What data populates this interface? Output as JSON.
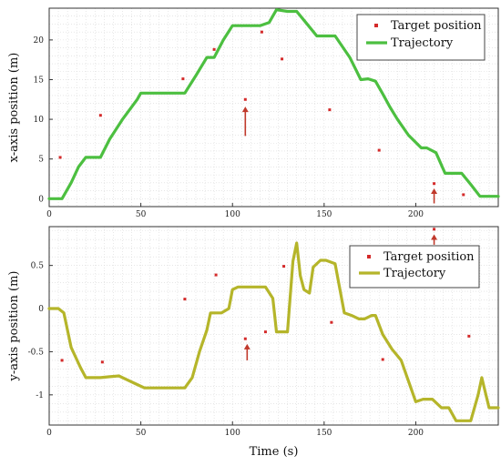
{
  "chart_data": [
    {
      "type": "line",
      "xlabel": "",
      "ylabel": "x-axis position (m)",
      "xlim": [
        0,
        245
      ],
      "ylim": [
        -1,
        24
      ],
      "xticks": [
        0,
        50,
        100,
        150,
        200
      ],
      "yticks": [
        0,
        5,
        10,
        15,
        20
      ],
      "grid": true,
      "legend_position": "top-right",
      "colors": {
        "target": "#d42a2a",
        "trajectory": "#4cbf40",
        "arrow": "#c0392b"
      },
      "series": [
        {
          "name": "Target position",
          "type": "scatter",
          "x": [
            6,
            28,
            73,
            90,
            107,
            116,
            127,
            153,
            180,
            210,
            226
          ],
          "y": [
            5.2,
            10.5,
            15.1,
            18.8,
            12.5,
            21.0,
            17.6,
            11.2,
            6.1,
            1.9,
            0.5
          ]
        },
        {
          "name": "Trajectory",
          "type": "line",
          "x": [
            0,
            7,
            12,
            16,
            20,
            28,
            33,
            40,
            48,
            50,
            58,
            70,
            74,
            80,
            86,
            90,
            95,
            100,
            104,
            115,
            120,
            124,
            130,
            135,
            140,
            146,
            152,
            156,
            164,
            170,
            174,
            178,
            182,
            186,
            190,
            196,
            203,
            206,
            211,
            216,
            220,
            225,
            230,
            235,
            245
          ],
          "y": [
            0,
            0,
            2.0,
            4.0,
            5.2,
            5.2,
            7.5,
            10.0,
            12.5,
            13.3,
            13.3,
            13.3,
            13.3,
            15.5,
            17.8,
            17.8,
            20.0,
            21.8,
            21.8,
            21.8,
            22.2,
            23.8,
            23.6,
            23.6,
            22.2,
            20.5,
            20.5,
            20.5,
            17.8,
            15.0,
            15.1,
            14.8,
            13.2,
            11.5,
            10.0,
            8.0,
            6.4,
            6.4,
            5.8,
            3.2,
            3.2,
            3.2,
            1.8,
            0.3,
            0.3
          ]
        }
      ],
      "annotations": [
        {
          "type": "arrow",
          "x": 107,
          "y_from": 7.9,
          "y_to": 11.6
        },
        {
          "type": "arrow",
          "x": 210,
          "y_from": -0.6,
          "y_to": 1.3
        }
      ]
    },
    {
      "type": "line",
      "xlabel": "Time (s)",
      "ylabel": "y-axis position (m)",
      "xlim": [
        0,
        245
      ],
      "ylim": [
        -1.35,
        0.95
      ],
      "xticks": [
        0,
        50,
        100,
        150,
        200
      ],
      "yticks": [
        -1,
        -0.5,
        0,
        0.5
      ],
      "grid": true,
      "legend_position": "top-right",
      "colors": {
        "target": "#d42a2a",
        "trajectory": "#b5b52a",
        "arrow": "#c0392b"
      },
      "series": [
        {
          "name": "Target position",
          "type": "scatter",
          "x": [
            7,
            29,
            74,
            91,
            107,
            118,
            128,
            154,
            182,
            210,
            229
          ],
          "y": [
            -0.6,
            -0.62,
            0.11,
            0.39,
            -0.35,
            -0.27,
            0.49,
            -0.16,
            -0.59,
            0.92,
            -0.32
          ]
        },
        {
          "name": "Trajectory",
          "type": "line",
          "x": [
            0,
            5,
            8,
            12,
            17,
            20,
            28,
            33,
            38,
            42,
            48,
            52,
            58,
            70,
            74,
            78,
            82,
            86,
            88,
            90,
            94,
            98,
            100,
            103,
            110,
            118,
            122,
            124,
            127,
            130,
            133,
            135,
            137,
            139,
            142,
            144,
            148,
            151,
            156,
            161,
            165,
            169,
            172,
            176,
            178,
            182,
            187,
            192,
            197,
            200,
            204,
            209,
            214,
            218,
            222,
            227,
            230,
            234,
            236,
            240,
            245
          ],
          "y": [
            0,
            0,
            -0.05,
            -0.45,
            -0.68,
            -0.8,
            -0.8,
            -0.79,
            -0.78,
            -0.82,
            -0.88,
            -0.92,
            -0.92,
            -0.92,
            -0.92,
            -0.8,
            -0.5,
            -0.25,
            -0.05,
            -0.05,
            -0.05,
            0.0,
            0.22,
            0.25,
            0.25,
            0.25,
            0.12,
            -0.27,
            -0.27,
            -0.27,
            0.55,
            0.76,
            0.38,
            0.22,
            0.18,
            0.48,
            0.56,
            0.56,
            0.52,
            -0.05,
            -0.08,
            -0.12,
            -0.12,
            -0.08,
            -0.08,
            -0.3,
            -0.47,
            -0.6,
            -0.9,
            -1.08,
            -1.05,
            -1.05,
            -1.15,
            -1.15,
            -1.3,
            -1.3,
            -1.3,
            -1.0,
            -0.8,
            -1.15,
            -1.15
          ]
        }
      ],
      "annotations": [
        {
          "type": "arrow",
          "x": 108,
          "y_from": -0.6,
          "y_to": -0.41
        },
        {
          "type": "arrow",
          "x": 210,
          "y_from": 0.74,
          "y_to": 0.86
        }
      ]
    }
  ]
}
